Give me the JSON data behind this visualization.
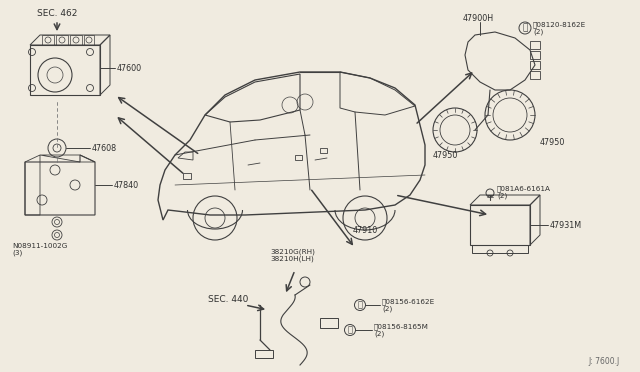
{
  "bg_color": "#f0ebe0",
  "line_color": "#404040",
  "lc_thin": "#555555",
  "watermark": "J: 7600.J",
  "labels": {
    "SEC_462": "SEC. 462",
    "p47600": "47600",
    "p47608": "47608",
    "p47840": "47840",
    "N08911": "N08911-1002G\n(3)",
    "p47910": "47910",
    "p38210G": "38210G(RH)\n38210H(LH)",
    "SEC_440": "SEC. 440",
    "p47900H": "47900H",
    "B08120": "Ⓑ08120-8162E\n(2)",
    "p47950a": "47950",
    "p47950b": "47950",
    "B081A6": "Ⓑ081A6-6161A\n(2)",
    "p47931M": "47931M",
    "B08156_6162E": "Ⓑ08156-6162E\n(2)",
    "B08156_8165M": "Ⓑ08156-8165M\n(2)"
  },
  "fs": 5.8,
  "fs_sec": 6.5,
  "fs_small": 5.2
}
